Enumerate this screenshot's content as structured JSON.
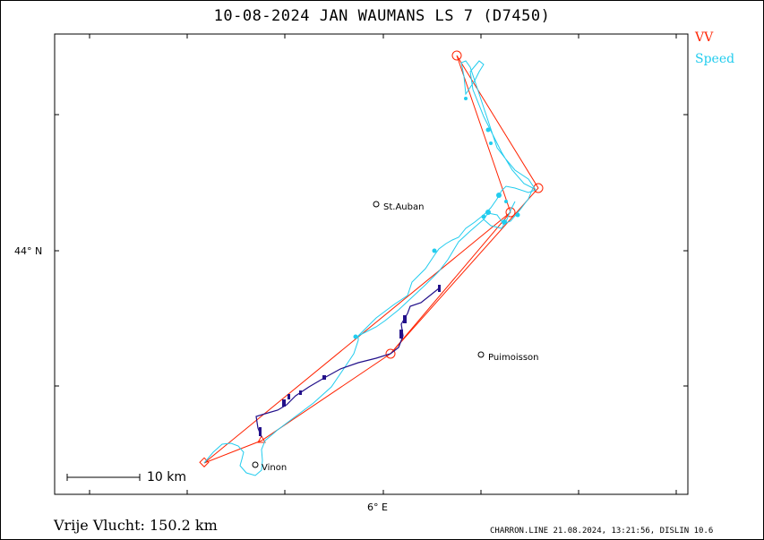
{
  "title": "10-08-2024   JAN WAUMANS   LS 7 (D7450)",
  "legend": {
    "vv": "VV",
    "speed": "Speed",
    "vv_color": "#ff2200",
    "speed_color": "#22ccee",
    "track_color": "#22108a"
  },
  "axes": {
    "lat_label": "44° N",
    "lon_label": "6° E"
  },
  "towns": [
    {
      "name": "St.Auban"
    },
    {
      "name": "Puimoisson"
    },
    {
      "name": "Vinon"
    }
  ],
  "scale_label": "10 km",
  "distance_label": "Vrije Vlucht:  150.2 km",
  "footer": "CHARRON.LINE 21.08.2024, 13:21:56, DISLIN 10.6"
}
